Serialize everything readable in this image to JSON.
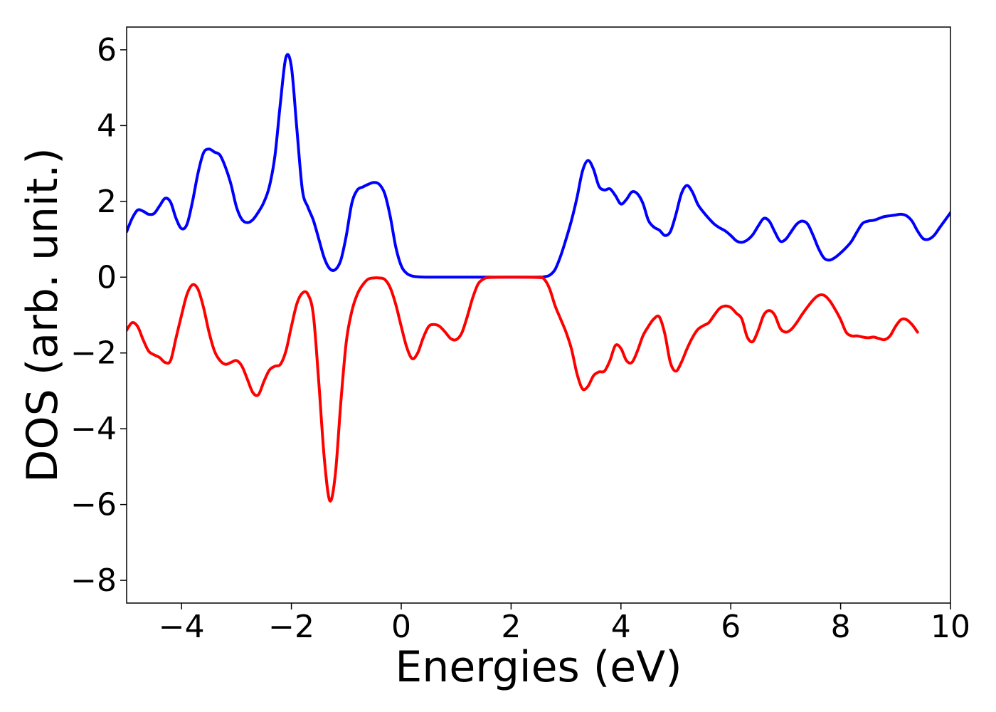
{
  "chart_data": {
    "type": "line",
    "title": "",
    "xlabel": "Energies (eV)",
    "ylabel": "DOS (arb. unit.)",
    "xlim": [
      -5,
      10
    ],
    "ylim": [
      -8.6,
      6.6
    ],
    "xticks": [
      -4,
      -2,
      0,
      2,
      4,
      6,
      8,
      10
    ],
    "xtick_labels": [
      "−4",
      "−2",
      "0",
      "2",
      "4",
      "6",
      "8",
      "10"
    ],
    "yticks": [
      6,
      4,
      2,
      0,
      -2,
      -4,
      -6,
      -8
    ],
    "ytick_labels": [
      "6",
      "4",
      "2",
      "0",
      "−2",
      "−4",
      "−6",
      "−8"
    ],
    "grid": false,
    "legend": false,
    "series": [
      {
        "color": "#0000ff",
        "points": [
          [
            -5.0,
            1.2
          ],
          [
            -4.9,
            1.55
          ],
          [
            -4.8,
            1.77
          ],
          [
            -4.7,
            1.74
          ],
          [
            -4.6,
            1.66
          ],
          [
            -4.5,
            1.68
          ],
          [
            -4.4,
            1.88
          ],
          [
            -4.3,
            2.08
          ],
          [
            -4.2,
            1.98
          ],
          [
            -4.1,
            1.55
          ],
          [
            -4.0,
            1.28
          ],
          [
            -3.9,
            1.4
          ],
          [
            -3.8,
            2.0
          ],
          [
            -3.7,
            2.75
          ],
          [
            -3.6,
            3.28
          ],
          [
            -3.5,
            3.38
          ],
          [
            -3.4,
            3.3
          ],
          [
            -3.3,
            3.22
          ],
          [
            -3.2,
            2.9
          ],
          [
            -3.1,
            2.45
          ],
          [
            -3.0,
            1.85
          ],
          [
            -2.9,
            1.52
          ],
          [
            -2.8,
            1.44
          ],
          [
            -2.7,
            1.52
          ],
          [
            -2.6,
            1.72
          ],
          [
            -2.5,
            1.98
          ],
          [
            -2.4,
            2.4
          ],
          [
            -2.3,
            3.2
          ],
          [
            -2.2,
            4.6
          ],
          [
            -2.1,
            5.8
          ],
          [
            -2.0,
            5.55
          ],
          [
            -1.9,
            3.9
          ],
          [
            -1.8,
            2.3
          ],
          [
            -1.7,
            1.85
          ],
          [
            -1.6,
            1.5
          ],
          [
            -1.5,
            1.0
          ],
          [
            -1.4,
            0.5
          ],
          [
            -1.3,
            0.22
          ],
          [
            -1.2,
            0.2
          ],
          [
            -1.1,
            0.45
          ],
          [
            -1.0,
            1.1
          ],
          [
            -0.9,
            1.95
          ],
          [
            -0.8,
            2.3
          ],
          [
            -0.7,
            2.38
          ],
          [
            -0.6,
            2.45
          ],
          [
            -0.5,
            2.5
          ],
          [
            -0.4,
            2.45
          ],
          [
            -0.3,
            2.2
          ],
          [
            -0.2,
            1.6
          ],
          [
            -0.1,
            0.8
          ],
          [
            0.0,
            0.3
          ],
          [
            0.1,
            0.1
          ],
          [
            0.2,
            0.03
          ],
          [
            0.3,
            0.01
          ],
          [
            0.5,
            0.0
          ],
          [
            1.0,
            0.0
          ],
          [
            1.5,
            0.0
          ],
          [
            2.0,
            0.0
          ],
          [
            2.5,
            0.0
          ],
          [
            2.6,
            0.01
          ],
          [
            2.7,
            0.05
          ],
          [
            2.8,
            0.2
          ],
          [
            2.9,
            0.55
          ],
          [
            3.0,
            1.0
          ],
          [
            3.1,
            1.5
          ],
          [
            3.2,
            2.1
          ],
          [
            3.3,
            2.8
          ],
          [
            3.4,
            3.08
          ],
          [
            3.5,
            2.85
          ],
          [
            3.6,
            2.4
          ],
          [
            3.7,
            2.3
          ],
          [
            3.8,
            2.33
          ],
          [
            3.9,
            2.15
          ],
          [
            4.0,
            1.93
          ],
          [
            4.1,
            2.05
          ],
          [
            4.2,
            2.25
          ],
          [
            4.3,
            2.2
          ],
          [
            4.4,
            1.95
          ],
          [
            4.5,
            1.5
          ],
          [
            4.6,
            1.32
          ],
          [
            4.7,
            1.24
          ],
          [
            4.8,
            1.1
          ],
          [
            4.9,
            1.2
          ],
          [
            5.0,
            1.65
          ],
          [
            5.1,
            2.2
          ],
          [
            5.2,
            2.42
          ],
          [
            5.3,
            2.25
          ],
          [
            5.4,
            1.92
          ],
          [
            5.5,
            1.72
          ],
          [
            5.6,
            1.55
          ],
          [
            5.7,
            1.4
          ],
          [
            5.8,
            1.3
          ],
          [
            5.9,
            1.22
          ],
          [
            6.0,
            1.1
          ],
          [
            6.1,
            0.96
          ],
          [
            6.2,
            0.92
          ],
          [
            6.3,
            0.98
          ],
          [
            6.4,
            1.12
          ],
          [
            6.5,
            1.35
          ],
          [
            6.6,
            1.55
          ],
          [
            6.7,
            1.48
          ],
          [
            6.8,
            1.2
          ],
          [
            6.9,
            0.95
          ],
          [
            7.0,
            1.0
          ],
          [
            7.1,
            1.2
          ],
          [
            7.2,
            1.4
          ],
          [
            7.3,
            1.48
          ],
          [
            7.4,
            1.4
          ],
          [
            7.5,
            1.1
          ],
          [
            7.6,
            0.75
          ],
          [
            7.7,
            0.5
          ],
          [
            7.8,
            0.45
          ],
          [
            7.9,
            0.52
          ],
          [
            8.0,
            0.64
          ],
          [
            8.1,
            0.78
          ],
          [
            8.2,
            0.95
          ],
          [
            8.3,
            1.2
          ],
          [
            8.4,
            1.42
          ],
          [
            8.5,
            1.48
          ],
          [
            8.6,
            1.5
          ],
          [
            8.7,
            1.55
          ],
          [
            8.8,
            1.6
          ],
          [
            8.9,
            1.62
          ],
          [
            9.0,
            1.64
          ],
          [
            9.1,
            1.66
          ],
          [
            9.2,
            1.62
          ],
          [
            9.3,
            1.48
          ],
          [
            9.4,
            1.22
          ],
          [
            9.5,
            1.02
          ],
          [
            9.6,
            1.0
          ],
          [
            9.7,
            1.1
          ],
          [
            9.8,
            1.3
          ],
          [
            9.9,
            1.5
          ],
          [
            10.0,
            1.7
          ]
        ]
      },
      {
        "color": "#ff0000",
        "points": [
          [
            -5.0,
            -1.4
          ],
          [
            -4.9,
            -1.2
          ],
          [
            -4.8,
            -1.3
          ],
          [
            -4.7,
            -1.65
          ],
          [
            -4.6,
            -1.95
          ],
          [
            -4.5,
            -2.05
          ],
          [
            -4.4,
            -2.12
          ],
          [
            -4.3,
            -2.25
          ],
          [
            -4.2,
            -2.2
          ],
          [
            -4.1,
            -1.6
          ],
          [
            -4.0,
            -1.0
          ],
          [
            -3.9,
            -0.45
          ],
          [
            -3.8,
            -0.2
          ],
          [
            -3.7,
            -0.32
          ],
          [
            -3.6,
            -0.8
          ],
          [
            -3.5,
            -1.45
          ],
          [
            -3.4,
            -1.95
          ],
          [
            -3.3,
            -2.2
          ],
          [
            -3.2,
            -2.3
          ],
          [
            -3.1,
            -2.25
          ],
          [
            -3.0,
            -2.2
          ],
          [
            -2.9,
            -2.35
          ],
          [
            -2.8,
            -2.7
          ],
          [
            -2.7,
            -3.05
          ],
          [
            -2.6,
            -3.1
          ],
          [
            -2.5,
            -2.75
          ],
          [
            -2.4,
            -2.45
          ],
          [
            -2.3,
            -2.35
          ],
          [
            -2.2,
            -2.3
          ],
          [
            -2.1,
            -1.95
          ],
          [
            -2.0,
            -1.3
          ],
          [
            -1.9,
            -0.7
          ],
          [
            -1.8,
            -0.42
          ],
          [
            -1.7,
            -0.45
          ],
          [
            -1.6,
            -1.0
          ],
          [
            -1.5,
            -2.8
          ],
          [
            -1.4,
            -4.8
          ],
          [
            -1.3,
            -5.9
          ],
          [
            -1.2,
            -5.2
          ],
          [
            -1.1,
            -3.3
          ],
          [
            -1.0,
            -1.7
          ],
          [
            -0.9,
            -0.9
          ],
          [
            -0.8,
            -0.45
          ],
          [
            -0.7,
            -0.2
          ],
          [
            -0.6,
            -0.05
          ],
          [
            -0.5,
            -0.02
          ],
          [
            -0.4,
            -0.02
          ],
          [
            -0.3,
            -0.06
          ],
          [
            -0.2,
            -0.28
          ],
          [
            -0.1,
            -0.72
          ],
          [
            0.0,
            -1.3
          ],
          [
            0.1,
            -1.85
          ],
          [
            0.2,
            -2.15
          ],
          [
            0.3,
            -2.0
          ],
          [
            0.4,
            -1.6
          ],
          [
            0.5,
            -1.3
          ],
          [
            0.6,
            -1.25
          ],
          [
            0.7,
            -1.3
          ],
          [
            0.8,
            -1.45
          ],
          [
            0.9,
            -1.62
          ],
          [
            1.0,
            -1.65
          ],
          [
            1.1,
            -1.48
          ],
          [
            1.2,
            -1.05
          ],
          [
            1.3,
            -0.55
          ],
          [
            1.4,
            -0.18
          ],
          [
            1.5,
            -0.05
          ],
          [
            1.6,
            -0.01
          ],
          [
            2.0,
            0.0
          ],
          [
            2.5,
            -0.01
          ],
          [
            2.6,
            -0.05
          ],
          [
            2.7,
            -0.3
          ],
          [
            2.8,
            -0.75
          ],
          [
            2.9,
            -1.1
          ],
          [
            3.0,
            -1.45
          ],
          [
            3.1,
            -1.9
          ],
          [
            3.2,
            -2.55
          ],
          [
            3.3,
            -2.95
          ],
          [
            3.4,
            -2.88
          ],
          [
            3.5,
            -2.6
          ],
          [
            3.6,
            -2.5
          ],
          [
            3.7,
            -2.48
          ],
          [
            3.8,
            -2.2
          ],
          [
            3.9,
            -1.8
          ],
          [
            4.0,
            -1.88
          ],
          [
            4.1,
            -2.2
          ],
          [
            4.2,
            -2.25
          ],
          [
            4.3,
            -1.95
          ],
          [
            4.4,
            -1.55
          ],
          [
            4.5,
            -1.3
          ],
          [
            4.6,
            -1.1
          ],
          [
            4.7,
            -1.05
          ],
          [
            4.8,
            -1.5
          ],
          [
            4.9,
            -2.25
          ],
          [
            5.0,
            -2.48
          ],
          [
            5.1,
            -2.25
          ],
          [
            5.2,
            -1.9
          ],
          [
            5.3,
            -1.6
          ],
          [
            5.4,
            -1.38
          ],
          [
            5.5,
            -1.28
          ],
          [
            5.6,
            -1.2
          ],
          [
            5.7,
            -1.0
          ],
          [
            5.8,
            -0.82
          ],
          [
            5.9,
            -0.76
          ],
          [
            6.0,
            -0.8
          ],
          [
            6.1,
            -0.95
          ],
          [
            6.2,
            -1.1
          ],
          [
            6.3,
            -1.58
          ],
          [
            6.4,
            -1.7
          ],
          [
            6.5,
            -1.4
          ],
          [
            6.6,
            -1.0
          ],
          [
            6.7,
            -0.88
          ],
          [
            6.8,
            -1.0
          ],
          [
            6.9,
            -1.35
          ],
          [
            7.0,
            -1.45
          ],
          [
            7.1,
            -1.38
          ],
          [
            7.2,
            -1.2
          ],
          [
            7.3,
            -0.98
          ],
          [
            7.4,
            -0.78
          ],
          [
            7.5,
            -0.6
          ],
          [
            7.6,
            -0.48
          ],
          [
            7.7,
            -0.48
          ],
          [
            7.8,
            -0.62
          ],
          [
            7.9,
            -0.85
          ],
          [
            8.0,
            -1.12
          ],
          [
            8.1,
            -1.45
          ],
          [
            8.2,
            -1.55
          ],
          [
            8.3,
            -1.55
          ],
          [
            8.4,
            -1.58
          ],
          [
            8.5,
            -1.6
          ],
          [
            8.6,
            -1.58
          ],
          [
            8.7,
            -1.62
          ],
          [
            8.8,
            -1.65
          ],
          [
            8.9,
            -1.55
          ],
          [
            9.0,
            -1.3
          ],
          [
            9.1,
            -1.12
          ],
          [
            9.2,
            -1.12
          ],
          [
            9.3,
            -1.25
          ],
          [
            9.4,
            -1.45
          ]
        ]
      }
    ]
  }
}
